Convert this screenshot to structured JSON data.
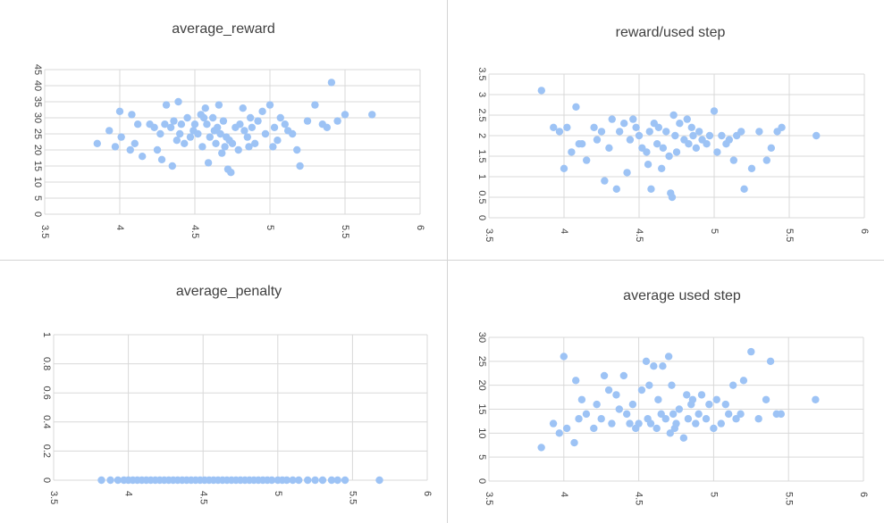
{
  "window": {
    "title": ""
  },
  "chart_data": [
    {
      "type": "scatter",
      "title": "average_reward",
      "xlabel": "",
      "ylabel": "",
      "xlim": [
        3.5,
        6
      ],
      "ylim": [
        0,
        45
      ],
      "xticks": [
        "3.5",
        "4",
        "4.5",
        "5",
        "5.5",
        "6"
      ],
      "yticks": [
        "0",
        "5",
        "10",
        "15",
        "20",
        "25",
        "30",
        "35",
        "40",
        "45"
      ],
      "grid": true,
      "legend": "none",
      "marker_color": "#9dc3f5",
      "series": [
        {
          "x": [
            3.85,
            3.93,
            3.97,
            4.0,
            4.01,
            4.07,
            4.08,
            4.1,
            4.12,
            4.15,
            4.2,
            4.23,
            4.25,
            4.27,
            4.28,
            4.3,
            4.31,
            4.34,
            4.35,
            4.36,
            4.38,
            4.39,
            4.4,
            4.41,
            4.43,
            4.45,
            4.47,
            4.49,
            4.5,
            4.52,
            4.54,
            4.55,
            4.56,
            4.57,
            4.58,
            4.59,
            4.6,
            4.62,
            4.63,
            4.64,
            4.65,
            4.66,
            4.67,
            4.68,
            4.69,
            4.7,
            4.71,
            4.72,
            4.73,
            4.74,
            4.75,
            4.77,
            4.79,
            4.8,
            4.82,
            4.83,
            4.85,
            4.86,
            4.87,
            4.88,
            4.9,
            4.92,
            4.95,
            4.97,
            5.0,
            5.02,
            5.03,
            5.05,
            5.07,
            5.1,
            5.12,
            5.15,
            5.18,
            5.2,
            5.25,
            5.3,
            5.35,
            5.38,
            5.41,
            5.45,
            5.5,
            5.68
          ],
          "y": [
            22,
            26,
            21,
            32,
            24,
            20,
            31,
            22,
            28,
            18,
            28,
            27,
            20,
            25,
            17,
            28,
            34,
            27,
            15,
            29,
            23,
            35,
            25,
            28,
            22,
            30,
            24,
            26,
            28,
            25,
            31,
            21,
            30,
            33,
            28,
            16,
            24,
            30,
            26,
            22,
            27,
            34,
            25,
            19,
            29,
            21,
            24,
            14,
            23,
            13,
            22,
            27,
            20,
            28,
            33,
            26,
            24,
            21,
            30,
            27,
            22,
            29,
            32,
            25,
            34,
            21,
            27,
            23,
            30,
            28,
            26,
            25,
            20,
            15,
            29,
            34,
            28,
            27,
            41,
            29,
            31,
            31
          ]
        }
      ]
    },
    {
      "type": "scatter",
      "title": "reward/used step",
      "xlabel": "",
      "ylabel": "",
      "xlim": [
        3.5,
        6
      ],
      "ylim": [
        0,
        3.5
      ],
      "xticks": [
        "3.5",
        "4",
        "4.5",
        "5",
        "5.5",
        "6"
      ],
      "yticks": [
        "0",
        "0.5",
        "1",
        "1.5",
        "2",
        "2.5",
        "3",
        "3.5"
      ],
      "grid": true,
      "legend": "none",
      "marker_color": "#9dc3f5",
      "series": [
        {
          "x": [
            3.85,
            3.93,
            3.97,
            4.0,
            4.02,
            4.05,
            4.08,
            4.1,
            4.12,
            4.15,
            4.2,
            4.22,
            4.25,
            4.27,
            4.3,
            4.32,
            4.35,
            4.37,
            4.4,
            4.42,
            4.44,
            4.46,
            4.48,
            4.5,
            4.52,
            4.55,
            4.56,
            4.57,
            4.58,
            4.6,
            4.62,
            4.63,
            4.65,
            4.66,
            4.68,
            4.7,
            4.71,
            4.72,
            4.73,
            4.74,
            4.75,
            4.77,
            4.8,
            4.82,
            4.83,
            4.85,
            4.86,
            4.88,
            4.9,
            4.92,
            4.95,
            4.97,
            5.0,
            5.02,
            5.05,
            5.08,
            5.1,
            5.13,
            5.15,
            5.18,
            5.2,
            5.25,
            5.3,
            5.35,
            5.38,
            5.42,
            5.45,
            5.68
          ],
          "y": [
            3.1,
            2.2,
            2.1,
            1.2,
            2.2,
            1.6,
            2.7,
            1.8,
            1.8,
            1.4,
            2.2,
            1.9,
            2.1,
            0.9,
            1.7,
            2.4,
            0.7,
            2.1,
            2.3,
            1.1,
            1.9,
            2.4,
            2.2,
            2.0,
            1.7,
            1.6,
            1.3,
            2.1,
            0.7,
            2.3,
            1.8,
            2.2,
            1.2,
            1.7,
            2.1,
            1.5,
            0.6,
            0.5,
            2.5,
            2.0,
            1.6,
            2.3,
            1.9,
            2.4,
            1.8,
            2.2,
            2.0,
            1.7,
            2.1,
            1.9,
            1.8,
            2.0,
            2.6,
            1.6,
            2.0,
            1.8,
            1.9,
            1.4,
            2.0,
            2.1,
            0.7,
            1.2,
            2.1,
            1.4,
            1.7,
            2.1,
            2.2,
            2.0
          ]
        }
      ]
    },
    {
      "type": "scatter",
      "title": "average_penalty",
      "xlabel": "",
      "ylabel": "",
      "xlim": [
        3.5,
        6
      ],
      "ylim": [
        0,
        1
      ],
      "xticks": [
        "3.5",
        "4",
        "4.5",
        "5",
        "5.5",
        "6"
      ],
      "yticks": [
        "0",
        "0.2",
        "0.4",
        "0.6",
        "0.8",
        "1"
      ],
      "grid": true,
      "legend": "none",
      "marker_color": "#9dc3f5",
      "series": [
        {
          "x": [
            3.82,
            3.88,
            3.93,
            3.97,
            4.0,
            4.03,
            4.06,
            4.09,
            4.12,
            4.15,
            4.18,
            4.21,
            4.24,
            4.27,
            4.3,
            4.33,
            4.36,
            4.39,
            4.42,
            4.45,
            4.48,
            4.51,
            4.54,
            4.57,
            4.6,
            4.63,
            4.66,
            4.69,
            4.72,
            4.75,
            4.78,
            4.81,
            4.84,
            4.87,
            4.9,
            4.93,
            4.96,
            5.0,
            5.03,
            5.06,
            5.1,
            5.14,
            5.2,
            5.25,
            5.3,
            5.36,
            5.4,
            5.45,
            5.68
          ],
          "y": [
            0,
            0,
            0,
            0,
            0,
            0,
            0,
            0,
            0,
            0,
            0,
            0,
            0,
            0,
            0,
            0,
            0,
            0,
            0,
            0,
            0,
            0,
            0,
            0,
            0,
            0,
            0,
            0,
            0,
            0,
            0,
            0,
            0,
            0,
            0,
            0,
            0,
            0,
            0,
            0,
            0,
            0,
            0,
            0,
            0,
            0,
            0,
            0,
            0
          ]
        }
      ]
    },
    {
      "type": "scatter",
      "title": "average used step",
      "xlabel": "",
      "ylabel": "",
      "xlim": [
        3.5,
        6
      ],
      "ylim": [
        0,
        30
      ],
      "xticks": [
        "3.5",
        "4",
        "4.5",
        "5",
        "5.5",
        "6"
      ],
      "yticks": [
        "0",
        "5",
        "10",
        "15",
        "20",
        "25",
        "30"
      ],
      "grid": true,
      "legend": "none",
      "marker_color": "#9dc3f5",
      "series": [
        {
          "x": [
            3.85,
            3.93,
            3.97,
            4.0,
            4.02,
            4.07,
            4.08,
            4.1,
            4.12,
            4.15,
            4.2,
            4.22,
            4.25,
            4.27,
            4.3,
            4.32,
            4.35,
            4.37,
            4.4,
            4.42,
            4.44,
            4.46,
            4.48,
            4.5,
            4.52,
            4.55,
            4.56,
            4.57,
            4.58,
            4.6,
            4.62,
            4.63,
            4.65,
            4.66,
            4.68,
            4.7,
            4.71,
            4.72,
            4.73,
            4.74,
            4.75,
            4.77,
            4.8,
            4.82,
            4.83,
            4.85,
            4.86,
            4.88,
            4.9,
            4.92,
            4.95,
            4.97,
            5.0,
            5.02,
            5.05,
            5.08,
            5.1,
            5.13,
            5.15,
            5.18,
            5.2,
            5.25,
            5.3,
            5.35,
            5.38,
            5.42,
            5.45,
            5.68
          ],
          "y": [
            7,
            12,
            10,
            26,
            11,
            8,
            21,
            13,
            17,
            14,
            11,
            16,
            13,
            22,
            19,
            12,
            18,
            15,
            22,
            14,
            12,
            16,
            11,
            12,
            19,
            25,
            13,
            20,
            12,
            24,
            11,
            17,
            14,
            24,
            13,
            26,
            10,
            20,
            14,
            11,
            12,
            15,
            9,
            18,
            13,
            16,
            17,
            12,
            14,
            18,
            13,
            16,
            11,
            17,
            12,
            16,
            14,
            20,
            13,
            14,
            21,
            27,
            13,
            17,
            25,
            14,
            14,
            17
          ]
        }
      ]
    }
  ]
}
